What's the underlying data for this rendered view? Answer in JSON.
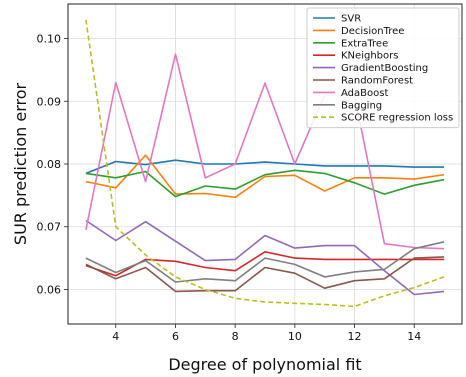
{
  "chart_data": {
    "type": "line",
    "xlabel": "Degree of polynomial fit",
    "ylabel": "SUR prediction error",
    "xlim": [
      2.4,
      15.6
    ],
    "ylim": [
      0.0545,
      0.1055
    ],
    "xticks": [
      "4",
      "6",
      "8",
      "10",
      "12",
      "14"
    ],
    "yticks": [
      "0.06",
      "0.07",
      "0.08",
      "0.09",
      "0.10"
    ],
    "grid": true,
    "legend": "top-right",
    "x": [
      3,
      4,
      5,
      6,
      7,
      8,
      9,
      10,
      11,
      12,
      13,
      14,
      15
    ],
    "series": [
      {
        "name": "SVR",
        "color": "#1f77b4",
        "dash": "solid",
        "values": [
          0.0785,
          0.0804,
          0.0799,
          0.0806,
          0.08,
          0.08,
          0.0803,
          0.08,
          0.0797,
          0.0797,
          0.0797,
          0.0795,
          0.0795
        ]
      },
      {
        "name": "DecisionTree",
        "color": "#ff7f0e",
        "dash": "solid",
        "values": [
          0.0772,
          0.0762,
          0.0814,
          0.0752,
          0.0753,
          0.0747,
          0.078,
          0.0782,
          0.0757,
          0.0778,
          0.0778,
          0.0776,
          0.0783
        ]
      },
      {
        "name": "ExtraTree",
        "color": "#2ca02c",
        "dash": "solid",
        "values": [
          0.0785,
          0.0778,
          0.0788,
          0.0748,
          0.0765,
          0.076,
          0.0783,
          0.079,
          0.0785,
          0.077,
          0.0752,
          0.0766,
          0.0775
        ]
      },
      {
        "name": "KNeighbors",
        "color": "#d62728",
        "dash": "solid",
        "values": [
          0.0638,
          0.0622,
          0.0648,
          0.0645,
          0.0635,
          0.063,
          0.066,
          0.065,
          0.0648,
          0.0648,
          0.0648,
          0.0648,
          0.0648
        ]
      },
      {
        "name": "GradientBoosting",
        "color": "#9467bd",
        "dash": "solid",
        "values": [
          0.071,
          0.0678,
          0.0708,
          0.0677,
          0.0646,
          0.0648,
          0.0686,
          0.0666,
          0.067,
          0.067,
          0.063,
          0.0592,
          0.0597
        ]
      },
      {
        "name": "RandomForest",
        "color": "#8c564b",
        "dash": "solid",
        "values": [
          0.064,
          0.0617,
          0.0635,
          0.0597,
          0.0598,
          0.0598,
          0.0635,
          0.0626,
          0.0602,
          0.0614,
          0.0617,
          0.065,
          0.0652
        ]
      },
      {
        "name": "AdaBoost",
        "color": "#e377c2",
        "dash": "solid",
        "values": [
          0.0695,
          0.093,
          0.0772,
          0.0975,
          0.0778,
          0.08,
          0.0929,
          0.08,
          0.091,
          0.091,
          0.0673,
          0.0667,
          0.0665
        ]
      },
      {
        "name": "Bagging",
        "color": "#7f7f7f",
        "dash": "solid",
        "values": [
          0.065,
          0.0627,
          0.0646,
          0.0612,
          0.0617,
          0.0614,
          0.065,
          0.064,
          0.062,
          0.0628,
          0.0632,
          0.0665,
          0.0676
        ]
      },
      {
        "name": "SCORE regression loss",
        "color": "#bcbd22",
        "dash": "dashed",
        "values": [
          0.103,
          0.07,
          0.0655,
          0.062,
          0.06,
          0.0586,
          0.058,
          0.0578,
          0.0576,
          0.0573,
          0.059,
          0.0603,
          0.062
        ]
      }
    ]
  }
}
